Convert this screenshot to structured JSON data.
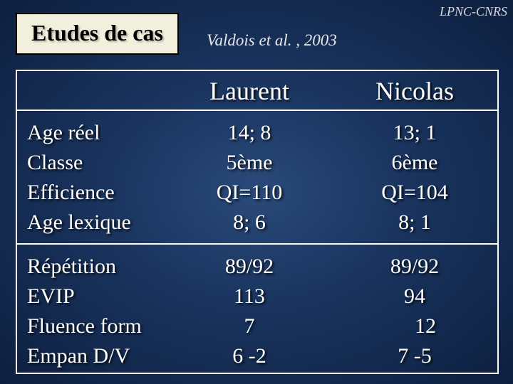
{
  "corner": "LPNC-CNRS",
  "title": "Etudes de cas",
  "citation": "Valdois et al. , 2003",
  "columns": {
    "c1": "Laurent",
    "c2": "Nicolas"
  },
  "block1": {
    "labels": {
      "r1": "Age réel",
      "r2": "Classe",
      "r3": "Efficience",
      "r4": "Age lexique"
    },
    "c1": {
      "r1": "14; 8",
      "r2": "5ème",
      "r3": "QI=110",
      "r4": "8; 6"
    },
    "c2": {
      "r1": "13; 1",
      "r2": "6ème",
      "r3": "QI=104",
      "r4": "8; 1"
    }
  },
  "block2": {
    "labels": {
      "r1": "Répétition",
      "r2": "EVIP",
      "r3": "Fluence form",
      "r4": "Empan D/V"
    },
    "c1": {
      "r1": "89/92",
      "r2": "113",
      "r3": "7",
      "r4": "6 -2"
    },
    "c2": {
      "r1": "89/92",
      "r2": "94",
      "r3": "12",
      "r4": "7 -5"
    }
  }
}
